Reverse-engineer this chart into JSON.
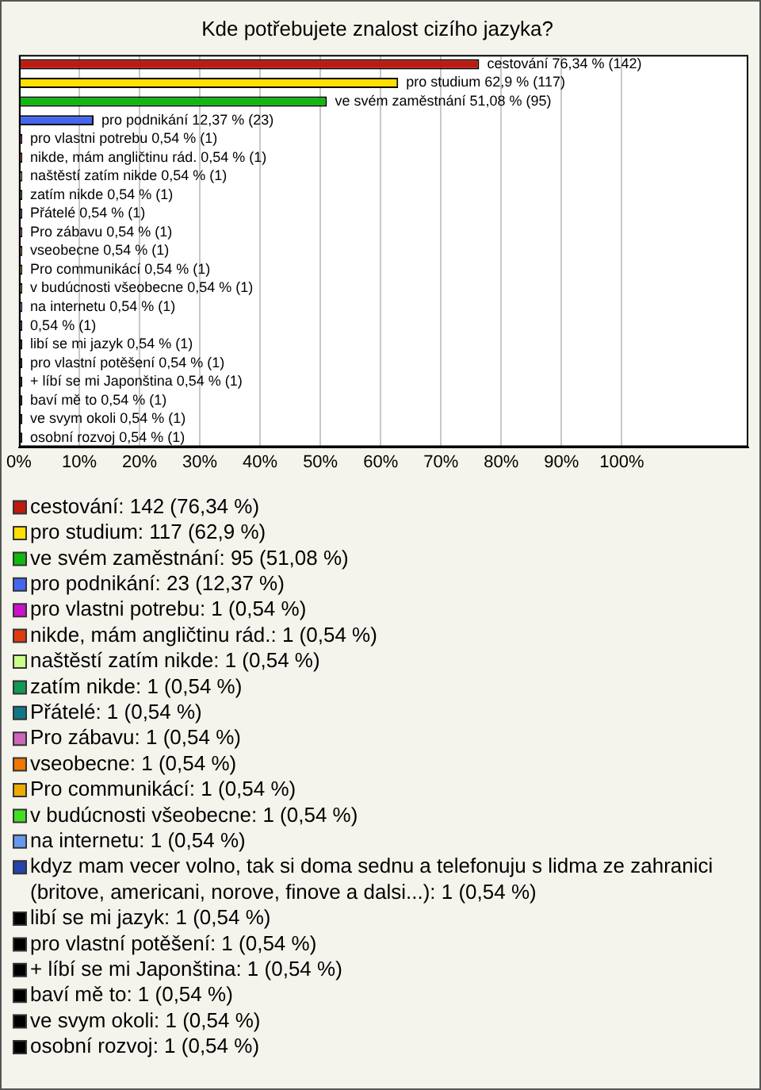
{
  "chart_data": {
    "type": "bar",
    "orientation": "horizontal",
    "title": "Kde potřebujete znalost cizího jazyka?",
    "categories": [
      null,
      null,
      null,
      null,
      null,
      null,
      null,
      null,
      null,
      null,
      null,
      null,
      null,
      null,
      null,
      null,
      null,
      null,
      null,
      null,
      null
    ],
    "series": [
      {
        "name": "cestování: 142 (76,34 %)",
        "color": "#c01a10",
        "values": [
          76.34,
          null,
          null,
          null,
          null,
          null,
          null,
          null,
          null,
          null,
          null,
          null,
          null,
          null,
          null,
          null,
          null,
          null,
          null,
          null,
          null
        ],
        "value_labels": [
          "cestování 76,34 % (142)",
          null,
          null,
          null,
          null,
          null,
          null,
          null,
          null,
          null,
          null,
          null,
          null,
          null,
          null,
          null,
          null,
          null,
          null,
          null,
          null
        ]
      },
      {
        "name": "pro studium: 117 (62,9 %)",
        "color": "#ffe000",
        "values": [
          null,
          62.9,
          null,
          null,
          null,
          null,
          null,
          null,
          null,
          null,
          null,
          null,
          null,
          null,
          null,
          null,
          null,
          null,
          null,
          null,
          null
        ],
        "value_labels": [
          null,
          "pro studium 62,9 % (117)",
          null,
          null,
          null,
          null,
          null,
          null,
          null,
          null,
          null,
          null,
          null,
          null,
          null,
          null,
          null,
          null,
          null,
          null,
          null
        ]
      },
      {
        "name": "ve svém zaměstnání: 95 (51,08 %)",
        "color": "#10b810",
        "values": [
          null,
          null,
          51.08,
          null,
          null,
          null,
          null,
          null,
          null,
          null,
          null,
          null,
          null,
          null,
          null,
          null,
          null,
          null,
          null,
          null,
          null
        ],
        "value_labels": [
          null,
          null,
          "ve svém zaměstnání 51,08 % (95)",
          null,
          null,
          null,
          null,
          null,
          null,
          null,
          null,
          null,
          null,
          null,
          null,
          null,
          null,
          null,
          null,
          null,
          null
        ]
      },
      {
        "name": "pro podnikání: 23 (12,37 %)",
        "color": "#4466ee",
        "values": [
          null,
          null,
          null,
          12.37,
          null,
          null,
          null,
          null,
          null,
          null,
          null,
          null,
          null,
          null,
          null,
          null,
          null,
          null,
          null,
          null,
          null
        ],
        "value_labels": [
          null,
          null,
          null,
          "pro podnikání 12,37 % (23)",
          null,
          null,
          null,
          null,
          null,
          null,
          null,
          null,
          null,
          null,
          null,
          null,
          null,
          null,
          null,
          null,
          null
        ]
      },
      {
        "name": "pro vlastni potrebu: 1 (0,54 %)",
        "color": "#cc10cc",
        "values": [
          null,
          null,
          null,
          null,
          0.54,
          null,
          null,
          null,
          null,
          null,
          null,
          null,
          null,
          null,
          null,
          null,
          null,
          null,
          null,
          null,
          null
        ],
        "value_labels": [
          null,
          null,
          null,
          null,
          "pro vlastni potrebu 0,54 % (1)",
          null,
          null,
          null,
          null,
          null,
          null,
          null,
          null,
          null,
          null,
          null,
          null,
          null,
          null,
          null,
          null
        ]
      },
      {
        "name": "nikde, mám angličtinu rád.: 1 (0,54 %)",
        "color": "#e03a10",
        "values": [
          null,
          null,
          null,
          null,
          null,
          0.54,
          null,
          null,
          null,
          null,
          null,
          null,
          null,
          null,
          null,
          null,
          null,
          null,
          null,
          null,
          null
        ],
        "value_labels": [
          null,
          null,
          null,
          null,
          null,
          "nikde, mám angličtinu rád. 0,54 % (1)",
          null,
          null,
          null,
          null,
          null,
          null,
          null,
          null,
          null,
          null,
          null,
          null,
          null,
          null,
          null
        ]
      },
      {
        "name": "naštěstí zatím nikde: 1 (0,54 %)",
        "color": "#ccff88",
        "values": [
          null,
          null,
          null,
          null,
          null,
          null,
          0.54,
          null,
          null,
          null,
          null,
          null,
          null,
          null,
          null,
          null,
          null,
          null,
          null,
          null,
          null
        ],
        "value_labels": [
          null,
          null,
          null,
          null,
          null,
          null,
          "naštěstí zatím nikde 0,54 % (1)",
          null,
          null,
          null,
          null,
          null,
          null,
          null,
          null,
          null,
          null,
          null,
          null,
          null,
          null
        ]
      },
      {
        "name": "zatím nikde: 1 (0,54 %)",
        "color": "#119955",
        "values": [
          null,
          null,
          null,
          null,
          null,
          null,
          null,
          0.54,
          null,
          null,
          null,
          null,
          null,
          null,
          null,
          null,
          null,
          null,
          null,
          null,
          null
        ],
        "value_labels": [
          null,
          null,
          null,
          null,
          null,
          null,
          null,
          "zatím nikde 0,54 % (1)",
          null,
          null,
          null,
          null,
          null,
          null,
          null,
          null,
          null,
          null,
          null,
          null,
          null
        ]
      },
      {
        "name": "Přátelé: 1 (0,54 %)",
        "color": "#117788",
        "values": [
          null,
          null,
          null,
          null,
          null,
          null,
          null,
          null,
          0.54,
          null,
          null,
          null,
          null,
          null,
          null,
          null,
          null,
          null,
          null,
          null,
          null
        ],
        "value_labels": [
          null,
          null,
          null,
          null,
          null,
          null,
          null,
          null,
          "Přátelé 0,54 % (1)",
          null,
          null,
          null,
          null,
          null,
          null,
          null,
          null,
          null,
          null,
          null,
          null
        ]
      },
      {
        "name": "Pro zábavu: 1 (0,54 %)",
        "color": "#cc66bb",
        "values": [
          null,
          null,
          null,
          null,
          null,
          null,
          null,
          null,
          null,
          0.54,
          null,
          null,
          null,
          null,
          null,
          null,
          null,
          null,
          null,
          null,
          null
        ],
        "value_labels": [
          null,
          null,
          null,
          null,
          null,
          null,
          null,
          null,
          null,
          "Pro zábavu 0,54 % (1)",
          null,
          null,
          null,
          null,
          null,
          null,
          null,
          null,
          null,
          null,
          null
        ]
      },
      {
        "name": "vseobecne: 1 (0,54 %)",
        "color": "#ee7700",
        "values": [
          null,
          null,
          null,
          null,
          null,
          null,
          null,
          null,
          null,
          null,
          0.54,
          null,
          null,
          null,
          null,
          null,
          null,
          null,
          null,
          null,
          null
        ],
        "value_labels": [
          null,
          null,
          null,
          null,
          null,
          null,
          null,
          null,
          null,
          null,
          "vseobecne 0,54 % (1)",
          null,
          null,
          null,
          null,
          null,
          null,
          null,
          null,
          null,
          null
        ]
      },
      {
        "name": "Pro communikácí: 1 (0,54 %)",
        "color": "#eeaa00",
        "values": [
          null,
          null,
          null,
          null,
          null,
          null,
          null,
          null,
          null,
          null,
          null,
          0.54,
          null,
          null,
          null,
          null,
          null,
          null,
          null,
          null,
          null
        ],
        "value_labels": [
          null,
          null,
          null,
          null,
          null,
          null,
          null,
          null,
          null,
          null,
          null,
          "Pro communikácí 0,54 % (1)",
          null,
          null,
          null,
          null,
          null,
          null,
          null,
          null,
          null
        ]
      },
      {
        "name": "v budúcnosti všeobecne: 1 (0,54 %)",
        "color": "#44dd22",
        "values": [
          null,
          null,
          null,
          null,
          null,
          null,
          null,
          null,
          null,
          null,
          null,
          null,
          0.54,
          null,
          null,
          null,
          null,
          null,
          null,
          null,
          null
        ],
        "value_labels": [
          null,
          null,
          null,
          null,
          null,
          null,
          null,
          null,
          null,
          null,
          null,
          null,
          "v budúcnosti všeobecne 0,54 % (1)",
          null,
          null,
          null,
          null,
          null,
          null,
          null,
          null
        ]
      },
      {
        "name": "na internetu: 1 (0,54 %)",
        "color": "#6699ee",
        "values": [
          null,
          null,
          null,
          null,
          null,
          null,
          null,
          null,
          null,
          null,
          null,
          null,
          null,
          0.54,
          null,
          null,
          null,
          null,
          null,
          null,
          null
        ],
        "value_labels": [
          null,
          null,
          null,
          null,
          null,
          null,
          null,
          null,
          null,
          null,
          null,
          null,
          null,
          "na internetu 0,54 % (1)",
          null,
          null,
          null,
          null,
          null,
          null,
          null
        ]
      },
      {
        "name": "kdyz mam vecer volno, tak si doma sednu a telefonuju s lidma ze zahranici (britove, americani, norove, finove a dalsi...): 1 (0,54 %)",
        "color": "#2244aa",
        "values": [
          null,
          null,
          null,
          null,
          null,
          null,
          null,
          null,
          null,
          null,
          null,
          null,
          null,
          null,
          0.54,
          null,
          null,
          null,
          null,
          null,
          null
        ],
        "value_labels": [
          null,
          null,
          null,
          null,
          null,
          null,
          null,
          null,
          null,
          null,
          null,
          null,
          null,
          null,
          "0,54 % (1)",
          null,
          null,
          null,
          null,
          null,
          null
        ]
      },
      {
        "name": "libí se mi jazyk: 1 (0,54 %)",
        "color": "#000000",
        "values": [
          null,
          null,
          null,
          null,
          null,
          null,
          null,
          null,
          null,
          null,
          null,
          null,
          null,
          null,
          null,
          0.54,
          null,
          null,
          null,
          null,
          null
        ],
        "value_labels": [
          null,
          null,
          null,
          null,
          null,
          null,
          null,
          null,
          null,
          null,
          null,
          null,
          null,
          null,
          null,
          "libí se mi jazyk 0,54 % (1)",
          null,
          null,
          null,
          null,
          null
        ]
      },
      {
        "name": "pro vlastní potěšení: 1 (0,54 %)",
        "color": "#000000",
        "values": [
          null,
          null,
          null,
          null,
          null,
          null,
          null,
          null,
          null,
          null,
          null,
          null,
          null,
          null,
          null,
          null,
          0.54,
          null,
          null,
          null,
          null
        ],
        "value_labels": [
          null,
          null,
          null,
          null,
          null,
          null,
          null,
          null,
          null,
          null,
          null,
          null,
          null,
          null,
          null,
          null,
          "pro vlastní potěšení 0,54 % (1)",
          null,
          null,
          null,
          null
        ]
      },
      {
        "name": "+ líbí se mi Japonština: 1 (0,54 %)",
        "color": "#000000",
        "values": [
          null,
          null,
          null,
          null,
          null,
          null,
          null,
          null,
          null,
          null,
          null,
          null,
          null,
          null,
          null,
          null,
          null,
          0.54,
          null,
          null,
          null
        ],
        "value_labels": [
          null,
          null,
          null,
          null,
          null,
          null,
          null,
          null,
          null,
          null,
          null,
          null,
          null,
          null,
          null,
          null,
          null,
          "+ líbí se mi Japonština 0,54 % (1)",
          null,
          null,
          null
        ]
      },
      {
        "name": "baví mě to: 1 (0,54 %)",
        "color": "#000000",
        "values": [
          null,
          null,
          null,
          null,
          null,
          null,
          null,
          null,
          null,
          null,
          null,
          null,
          null,
          null,
          null,
          null,
          null,
          null,
          0.54,
          null,
          null
        ],
        "value_labels": [
          null,
          null,
          null,
          null,
          null,
          null,
          null,
          null,
          null,
          null,
          null,
          null,
          null,
          null,
          null,
          null,
          null,
          null,
          "baví mě to 0,54 % (1)",
          null,
          null
        ]
      },
      {
        "name": "ve svym okoli: 1 (0,54 %)",
        "color": "#000000",
        "values": [
          null,
          null,
          null,
          null,
          null,
          null,
          null,
          null,
          null,
          null,
          null,
          null,
          null,
          null,
          null,
          null,
          null,
          null,
          null,
          0.54,
          null
        ],
        "value_labels": [
          null,
          null,
          null,
          null,
          null,
          null,
          null,
          null,
          null,
          null,
          null,
          null,
          null,
          null,
          null,
          null,
          null,
          null,
          null,
          "ve svym okoli 0,54 % (1)",
          null
        ]
      },
      {
        "name": "osobní rozvoj: 1 (0,54 %)",
        "color": "#000000",
        "values": [
          null,
          null,
          null,
          null,
          null,
          null,
          null,
          null,
          null,
          null,
          null,
          null,
          null,
          null,
          null,
          null,
          null,
          null,
          null,
          null,
          0.54
        ],
        "value_labels": [
          null,
          null,
          null,
          null,
          null,
          null,
          null,
          null,
          null,
          null,
          null,
          null,
          null,
          null,
          null,
          null,
          null,
          null,
          null,
          null,
          "osobní rozvoj 0,54 % (1)"
        ]
      }
    ],
    "xlim": [
      0,
      121
    ],
    "xticks": [
      {
        "value": 0,
        "label": "0%"
      },
      {
        "value": 10,
        "label": "10%"
      },
      {
        "value": 20,
        "label": "20%"
      },
      {
        "value": 30,
        "label": "30%"
      },
      {
        "value": 40,
        "label": "40%"
      },
      {
        "value": 50,
        "label": "50%"
      },
      {
        "value": 60,
        "label": "60%"
      },
      {
        "value": 70,
        "label": "70%"
      },
      {
        "value": 80,
        "label": "80%"
      },
      {
        "value": 90,
        "label": "90%"
      },
      {
        "value": 100,
        "label": "100%"
      }
    ],
    "grid": "x",
    "tick_labels": "x",
    "legend": "bottom"
  }
}
